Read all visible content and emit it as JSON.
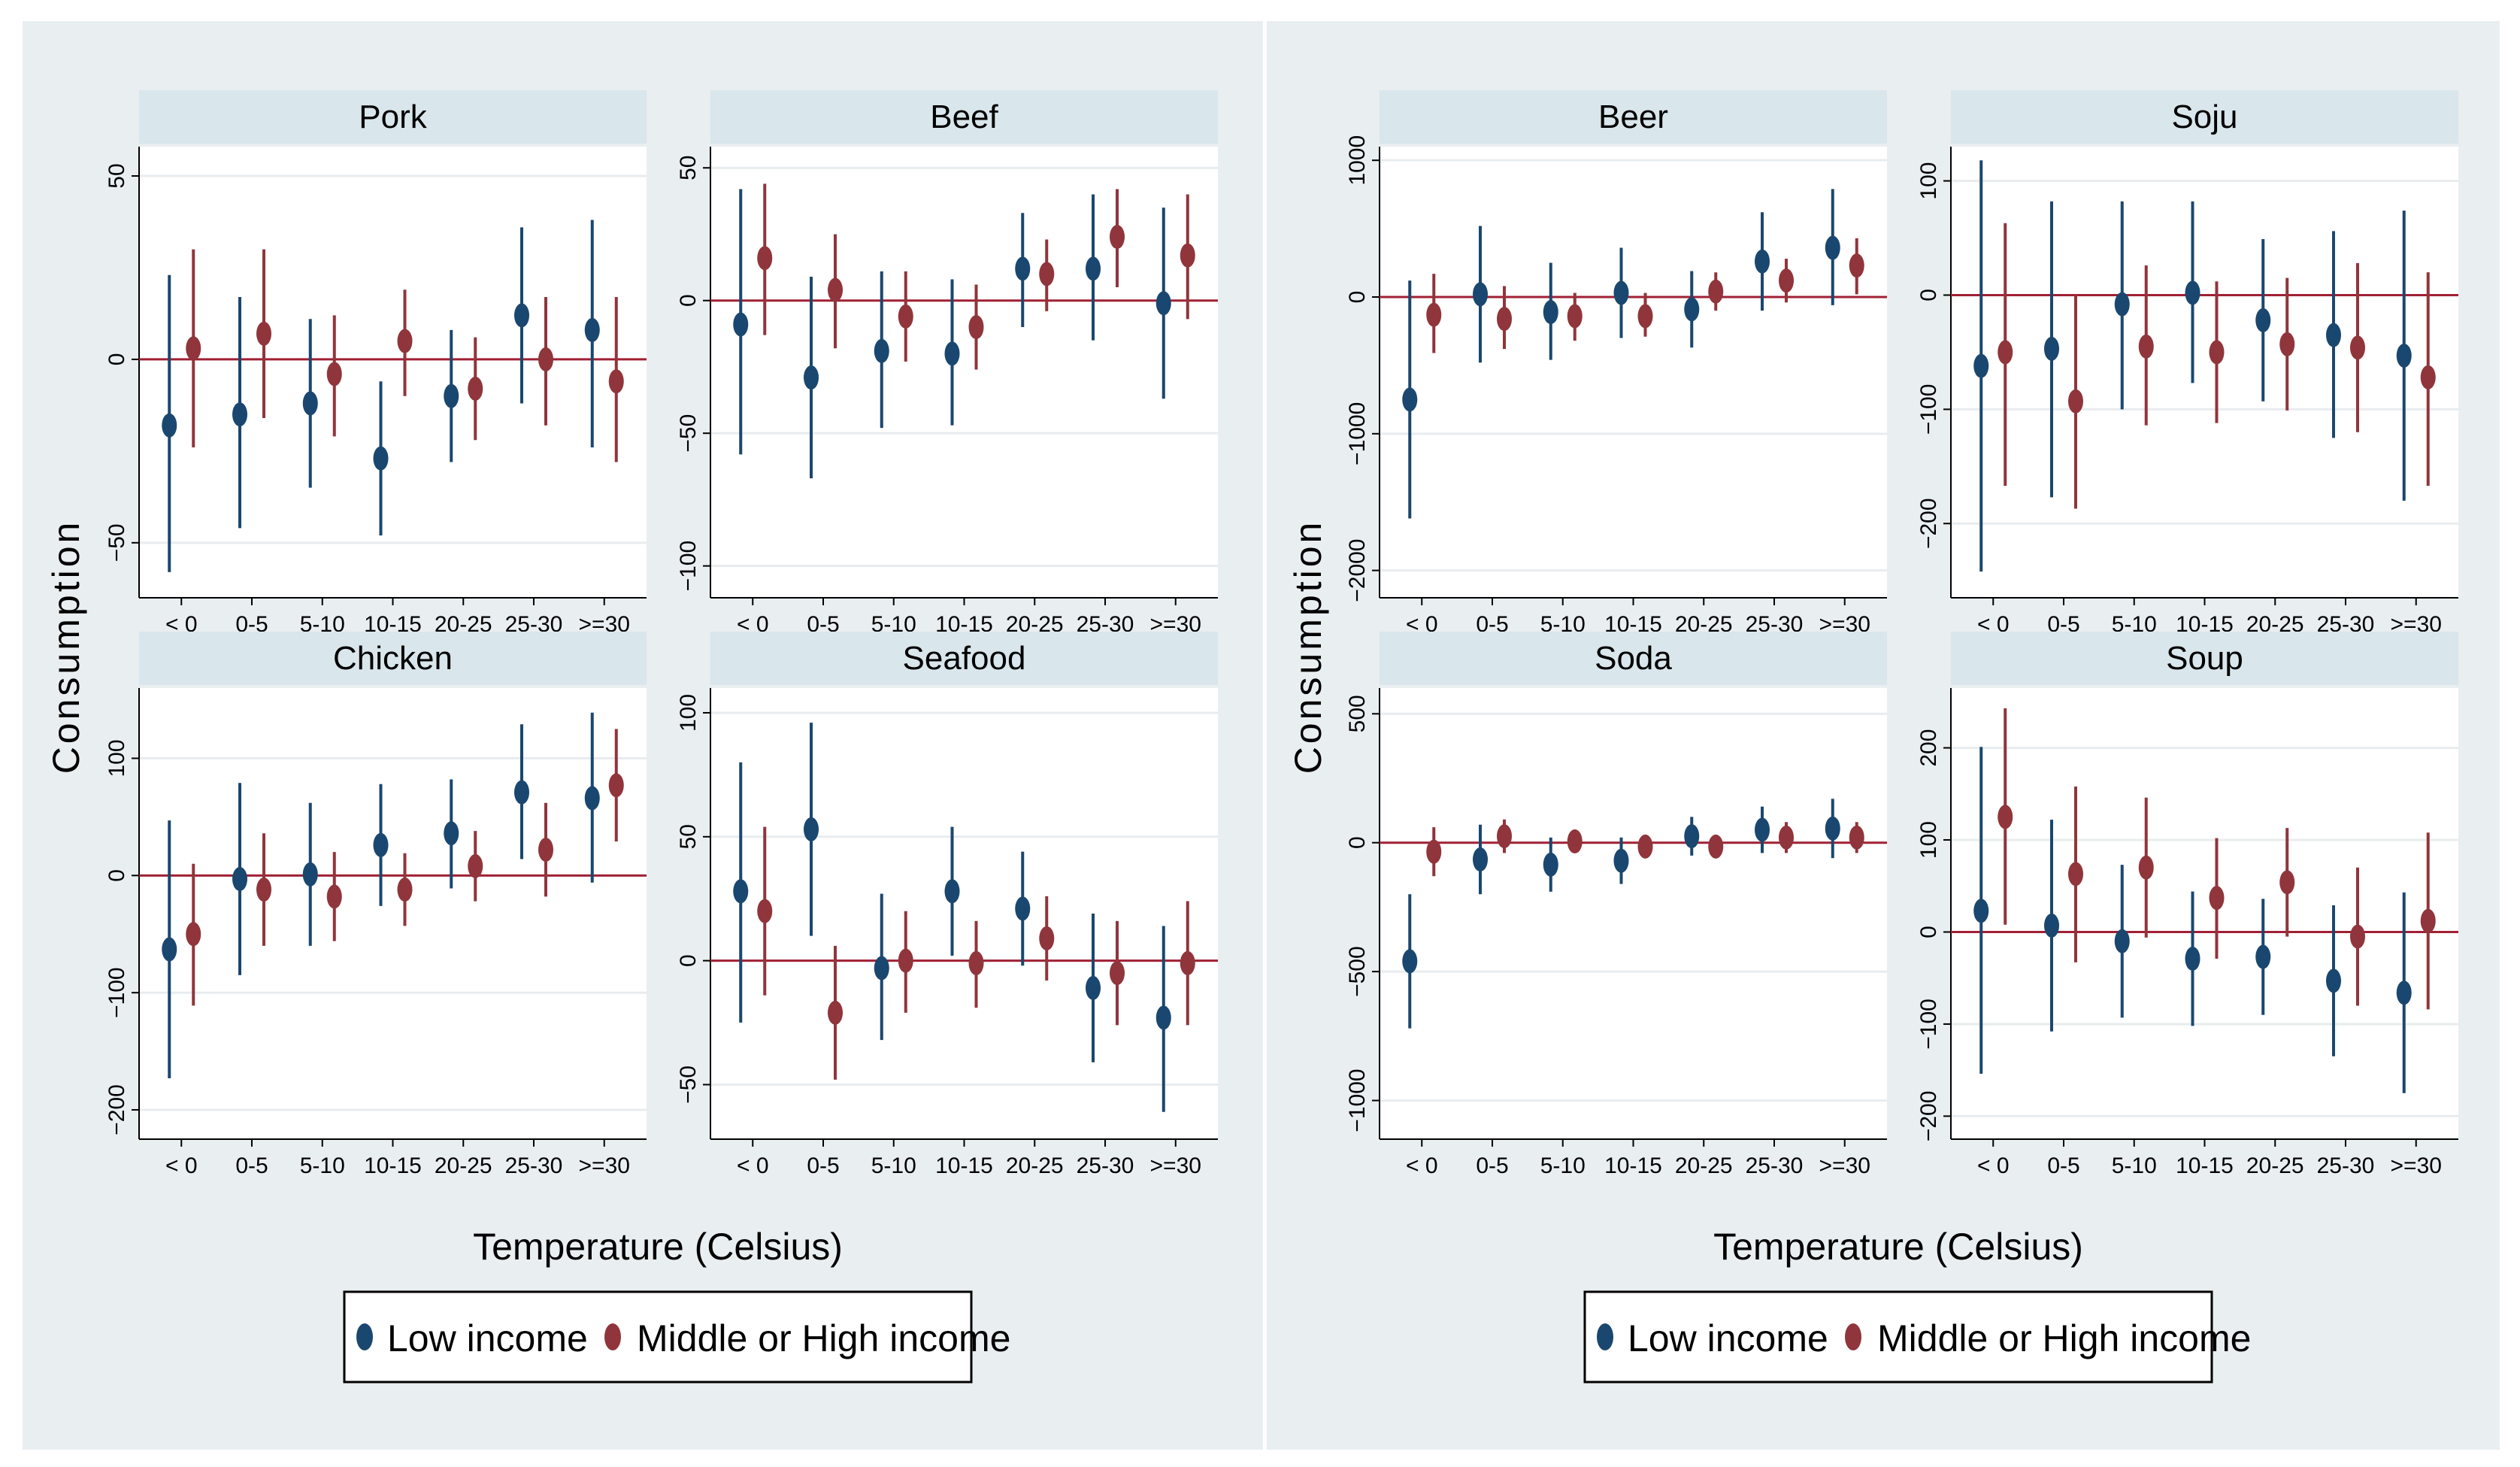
{
  "colors": {
    "low": "#1a476f",
    "high": "#90353b",
    "zero": "#a02034",
    "strip": "#d9e6eb",
    "bg": "#e9eef1",
    "grid": "#e8ecef"
  },
  "groups": [
    {
      "ylabel": "Consumption",
      "xlabel": "Temperature (Celsius)",
      "legend": {
        "low": "Low income",
        "high": "Middle or High income"
      }
    },
    {
      "ylabel": "Consumption",
      "xlabel": "Temperature (Celsius)",
      "legend": {
        "low": "Low income",
        "high": "Middle or High income"
      }
    }
  ],
  "chart_data": [
    {
      "type": "scatter",
      "title": "Pork",
      "ylim": [
        -65,
        58
      ],
      "yticks": [
        50,
        0,
        -50
      ],
      "categories": [
        "< 0",
        "0-5",
        "5-10",
        "10-15",
        "20-25",
        "25-30",
        ">=30"
      ],
      "series": [
        {
          "name": "Low income",
          "values": [
            -18,
            -15,
            -12,
            -27,
            -10,
            12,
            8
          ],
          "lower": [
            -58,
            -46,
            -35,
            -48,
            -28,
            -12,
            -24
          ],
          "upper": [
            23,
            17,
            11,
            -6,
            8,
            36,
            38
          ]
        },
        {
          "name": "Middle or High income",
          "values": [
            3,
            7,
            -4,
            5,
            -8,
            0,
            -6
          ],
          "lower": [
            -24,
            -16,
            -21,
            -10,
            -22,
            -18,
            -28
          ],
          "upper": [
            30,
            30,
            12,
            19,
            6,
            17,
            17
          ]
        }
      ]
    },
    {
      "type": "scatter",
      "title": "Beef",
      "ylim": [
        -112,
        58
      ],
      "yticks": [
        50,
        0,
        -50,
        -100
      ],
      "categories": [
        "< 0",
        "0-5",
        "5-10",
        "10-15",
        "20-25",
        "25-30",
        ">=30"
      ],
      "series": [
        {
          "name": "Low income",
          "values": [
            -9,
            -29,
            -19,
            -20,
            12,
            12,
            -1
          ],
          "lower": [
            -58,
            -67,
            -48,
            -47,
            -10,
            -15,
            -37
          ],
          "upper": [
            42,
            9,
            11,
            8,
            33,
            40,
            35
          ]
        },
        {
          "name": "Middle or High income",
          "values": [
            16,
            4,
            -6,
            -10,
            10,
            24,
            17
          ],
          "lower": [
            -13,
            -18,
            -23,
            -26,
            -4,
            5,
            -7
          ],
          "upper": [
            44,
            25,
            11,
            6,
            23,
            42,
            40
          ]
        }
      ]
    },
    {
      "type": "scatter",
      "title": "Chicken",
      "ylim": [
        -225,
        160
      ],
      "yticks": [
        100,
        0,
        -100,
        -200
      ],
      "categories": [
        "< 0",
        "0-5",
        "5-10",
        "10-15",
        "20-25",
        "25-30",
        ">=30"
      ],
      "series": [
        {
          "name": "Low income",
          "values": [
            -63,
            -3,
            1,
            26,
            36,
            71,
            66
          ],
          "lower": [
            -173,
            -85,
            -60,
            -26,
            -11,
            14,
            -6
          ],
          "upper": [
            47,
            79,
            62,
            78,
            82,
            129,
            139
          ]
        },
        {
          "name": "Middle or High income",
          "values": [
            -50,
            -12,
            -18,
            -12,
            8,
            22,
            77
          ],
          "lower": [
            -111,
            -60,
            -56,
            -43,
            -22,
            -18,
            29
          ],
          "upper": [
            10,
            36,
            20,
            19,
            38,
            62,
            125
          ]
        }
      ]
    },
    {
      "type": "scatter",
      "title": "Seafood",
      "ylim": [
        -72,
        110
      ],
      "yticks": [
        100,
        50,
        0,
        -50
      ],
      "categories": [
        "< 0",
        "0-5",
        "5-10",
        "10-15",
        "20-25",
        "25-30",
        ">=30"
      ],
      "series": [
        {
          "name": "Low income",
          "values": [
            28,
            53,
            -3,
            28,
            21,
            -11,
            -23
          ],
          "lower": [
            -25,
            10,
            -32,
            2,
            -2,
            -41,
            -61
          ],
          "upper": [
            80,
            96,
            27,
            54,
            44,
            19,
            14
          ]
        },
        {
          "name": "Middle or High income",
          "values": [
            20,
            -21,
            0,
            -1,
            9,
            -5,
            -1
          ],
          "lower": [
            -14,
            -48,
            -21,
            -19,
            -8,
            -26,
            -26
          ],
          "upper": [
            54,
            6,
            20,
            16,
            26,
            16,
            24
          ]
        }
      ]
    },
    {
      "type": "scatter",
      "title": "Beer",
      "ylim": [
        -2200,
        1100
      ],
      "yticks": [
        1000,
        0,
        -1000,
        -2000
      ],
      "categories": [
        "< 0",
        "0-5",
        "5-10",
        "10-15",
        "20-25",
        "25-30",
        ">=30"
      ],
      "series": [
        {
          "name": "Low income",
          "values": [
            -750,
            20,
            -110,
            30,
            -90,
            260,
            360
          ],
          "lower": [
            -1620,
            -480,
            -460,
            -300,
            -370,
            -100,
            -60
          ],
          "upper": [
            120,
            520,
            250,
            360,
            190,
            620,
            790
          ]
        },
        {
          "name": "Middle or High income",
          "values": [
            -130,
            -160,
            -140,
            -140,
            40,
            120,
            230
          ],
          "lower": [
            -410,
            -380,
            -320,
            -290,
            -100,
            -40,
            20
          ],
          "upper": [
            170,
            80,
            30,
            30,
            180,
            280,
            430
          ]
        }
      ]
    },
    {
      "type": "scatter",
      "title": "Soju",
      "ylim": [
        -265,
        130
      ],
      "yticks": [
        100,
        0,
        -100,
        -200
      ],
      "categories": [
        "< 0",
        "0-5",
        "5-10",
        "10-15",
        "20-25",
        "25-30",
        ">=30"
      ],
      "series": [
        {
          "name": "Low income",
          "values": [
            -62,
            -47,
            -8,
            2,
            -22,
            -35,
            -53
          ],
          "lower": [
            -242,
            -177,
            -100,
            -77,
            -93,
            -125,
            -180
          ],
          "upper": [
            118,
            82,
            82,
            82,
            49,
            56,
            74
          ]
        },
        {
          "name": "Middle or High income",
          "values": [
            -50,
            -93,
            -45,
            -50,
            -43,
            -46,
            -72
          ],
          "lower": [
            -167,
            -187,
            -114,
            -112,
            -101,
            -120,
            -167
          ],
          "upper": [
            63,
            0,
            26,
            12,
            15,
            28,
            20
          ]
        }
      ]
    },
    {
      "type": "scatter",
      "title": "Soda",
      "ylim": [
        -1150,
        600
      ],
      "yticks": [
        500,
        0,
        -500,
        -1000
      ],
      "categories": [
        "< 0",
        "0-5",
        "5-10",
        "10-15",
        "20-25",
        "25-30",
        ">=30"
      ],
      "series": [
        {
          "name": "Low income",
          "values": [
            -460,
            -65,
            -85,
            -70,
            25,
            50,
            55
          ],
          "lower": [
            -720,
            -200,
            -190,
            -160,
            -50,
            -40,
            -60
          ],
          "upper": [
            -200,
            70,
            20,
            20,
            100,
            140,
            170
          ]
        },
        {
          "name": "Middle or High income",
          "values": [
            -35,
            25,
            5,
            -15,
            -15,
            20,
            20
          ],
          "lower": [
            -130,
            -40,
            -40,
            -60,
            -60,
            -40,
            -40
          ],
          "upper": [
            60,
            90,
            50,
            30,
            30,
            80,
            80
          ]
        }
      ]
    },
    {
      "type": "scatter",
      "title": "Soup",
      "ylim": [
        -225,
        265
      ],
      "yticks": [
        200,
        100,
        0,
        -100,
        -200
      ],
      "categories": [
        "< 0",
        "0-5",
        "5-10",
        "10-15",
        "20-25",
        "25-30",
        ">=30"
      ],
      "series": [
        {
          "name": "Low income",
          "values": [
            23,
            7,
            -10,
            -29,
            -27,
            -53,
            -66
          ],
          "lower": [
            -154,
            -108,
            -93,
            -102,
            -90,
            -135,
            -175
          ],
          "upper": [
            201,
            122,
            73,
            44,
            36,
            29,
            43
          ]
        },
        {
          "name": "Middle or High income",
          "values": [
            125,
            63,
            70,
            37,
            54,
            -5,
            12
          ],
          "lower": [
            8,
            -33,
            -6,
            -29,
            -5,
            -80,
            -84
          ],
          "upper": [
            243,
            158,
            146,
            102,
            113,
            70,
            108
          ]
        }
      ]
    }
  ]
}
